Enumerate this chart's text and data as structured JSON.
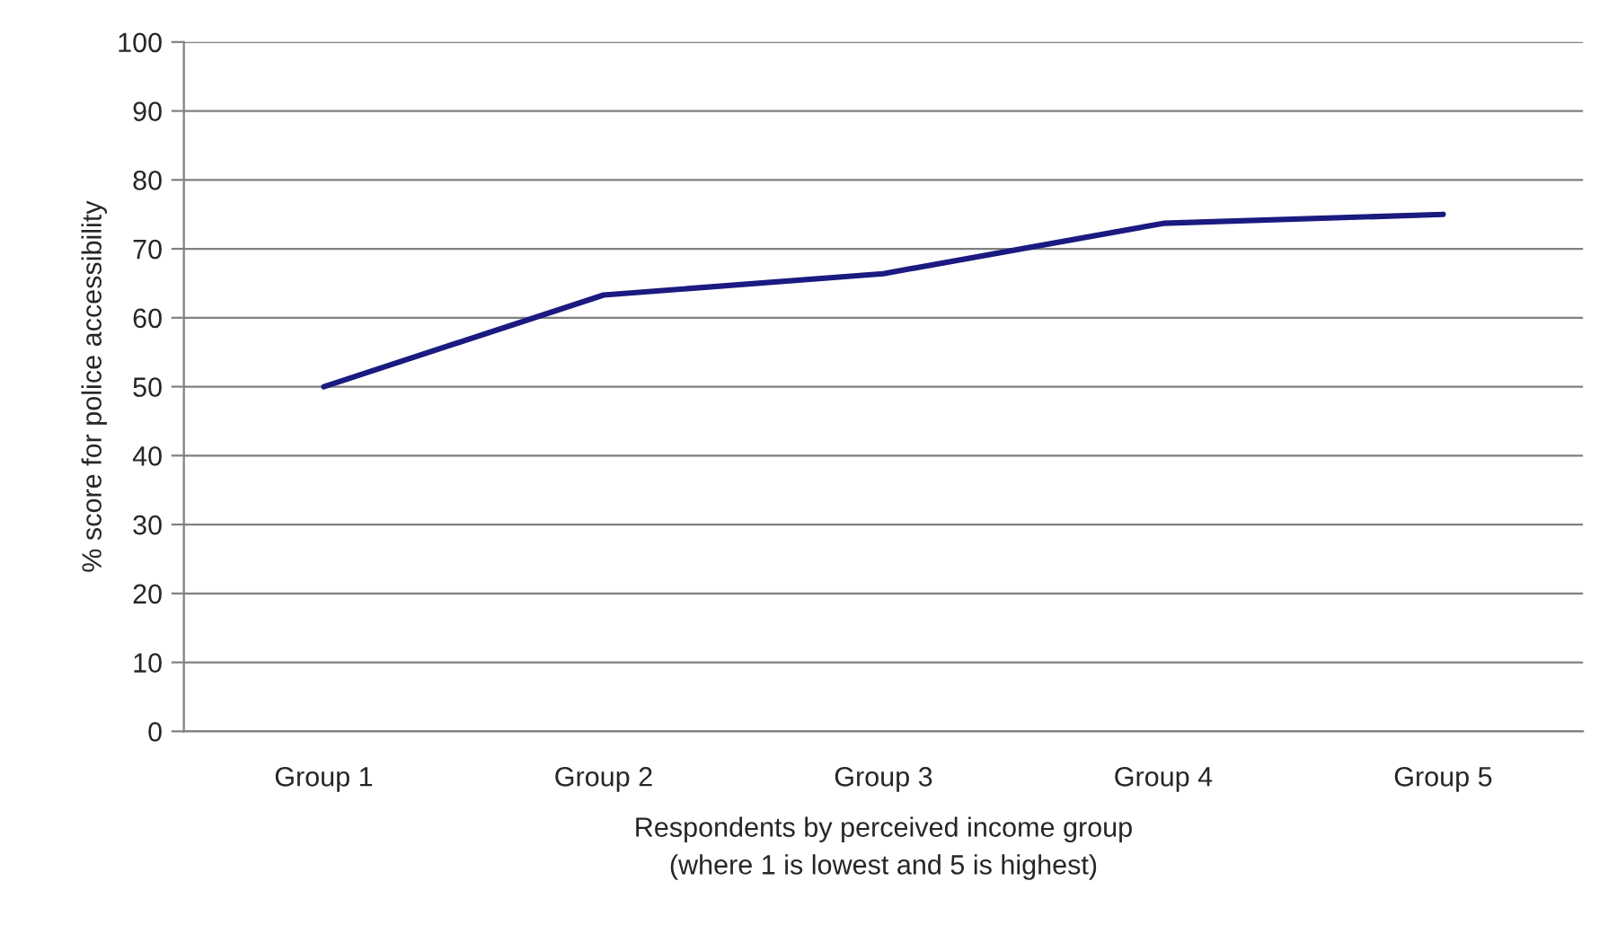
{
  "chart_data": {
    "type": "line",
    "xlabel": "Respondents by perceived income group\n(where 1 is lowest and 5 is highest)",
    "ylabel": "% score for police accessibility",
    "categories": [
      "Group 1",
      "Group 2",
      "Group 3",
      "Group 4",
      "Group 5"
    ],
    "series": [
      {
        "color": "#1a1a80",
        "values": [
          50,
          63.3,
          66.4,
          73.7,
          75
        ]
      }
    ],
    "ylim": [
      0,
      100
    ],
    "yticks": [
      0,
      10,
      20,
      30,
      40,
      50,
      60,
      70,
      80,
      90,
      100
    ],
    "grid": "y",
    "marker": "none",
    "line_style": "solid"
  }
}
